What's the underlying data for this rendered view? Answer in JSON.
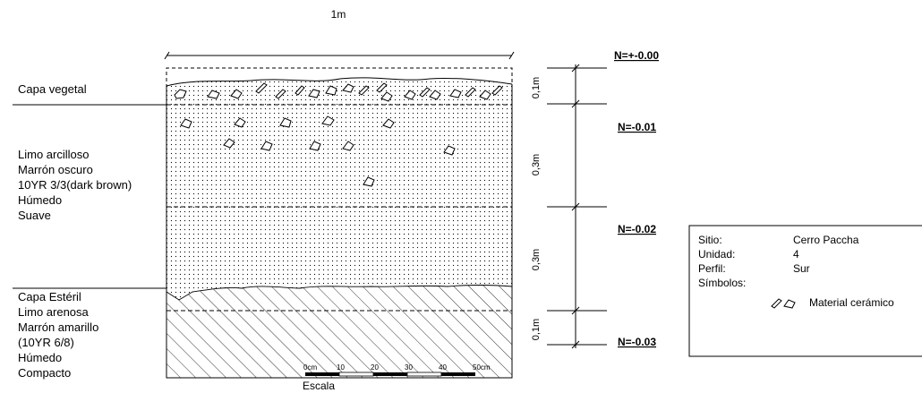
{
  "width_label": "1m",
  "layers": [
    {
      "name": "capa-vegetal",
      "lines": [
        "Capa vegetal"
      ]
    },
    {
      "name": "limo-arcilloso",
      "lines": [
        "Limo arcilloso",
        "Marrón oscuro",
        "10YR 3/3(dark brown)",
        "Húmedo",
        "Suave"
      ]
    },
    {
      "name": "capa-esteril",
      "lines": [
        "Capa Estéril",
        "Limo arenosa",
        "Marrón amarillo",
        "(10YR  6/8)",
        "Húmedo",
        "Compacto"
      ]
    }
  ],
  "thickness_labels": [
    "0,1m",
    "0,3m",
    "0,3m",
    "0,1m"
  ],
  "levels": [
    "N=+-0.00",
    "N=-0.01",
    "N=-0.02",
    "N=-0.03"
  ],
  "scale": {
    "title": "Escala",
    "ticks": [
      "0cm",
      "10",
      "20",
      "30",
      "40",
      "50cm"
    ]
  },
  "legend": {
    "rows": [
      {
        "label": "Sitio:",
        "value": "Cerro Paccha"
      },
      {
        "label": "Unidad:",
        "value": "4"
      },
      {
        "label": "Perfil:",
        "value": "Sur"
      }
    ],
    "symbols_label": "Símbolos:",
    "symbol_text": "Material cerámico"
  }
}
